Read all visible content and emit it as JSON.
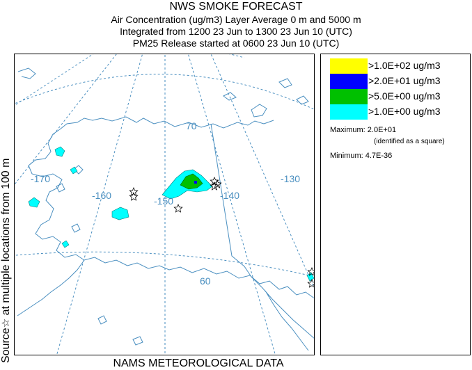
{
  "header": {
    "title": "NWS SMOKE FORECAST",
    "line2": "Air Concentration (ug/m3) Layer Average    0 m and  5000 m",
    "line3": "Integrated from 1200 23 Jun to 1300 23 Jun 10 (UTC)",
    "line4": "PM25 Release started at 0600 23 Jun 10 (UTC)"
  },
  "side_label": {
    "source_text": "Source",
    "star_glyph": "☆",
    "location_text": " at multiple locations   from   100 m"
  },
  "footer": {
    "text": "NAMS METEOROLOGICAL DATA"
  },
  "map": {
    "longitude_labels": [
      "-170",
      "-160",
      "-150",
      "-140",
      "-130"
    ],
    "latitude_labels": [
      "70",
      "60"
    ],
    "graticule_color": "#4a8fc0",
    "coast_color": "#4a8fc0",
    "source_marker": "star-icon"
  },
  "legend": {
    "items": [
      {
        "label": ">1.0E+02 ug/m3",
        "color": "#ffff00"
      },
      {
        "label": ">2.0E+01 ug/m3",
        "color": "#0000ff"
      },
      {
        "label": ">5.0E+00 ug/m3",
        "color": "#00c000"
      },
      {
        "label": ">1.0E+00 ug/m3",
        "color": "#00ffff"
      }
    ],
    "maximum_label": "Maximum: 2.0E+01",
    "maximum_note": "(identified as a square)",
    "minimum_label": "Minimum: 4.7E-36"
  }
}
